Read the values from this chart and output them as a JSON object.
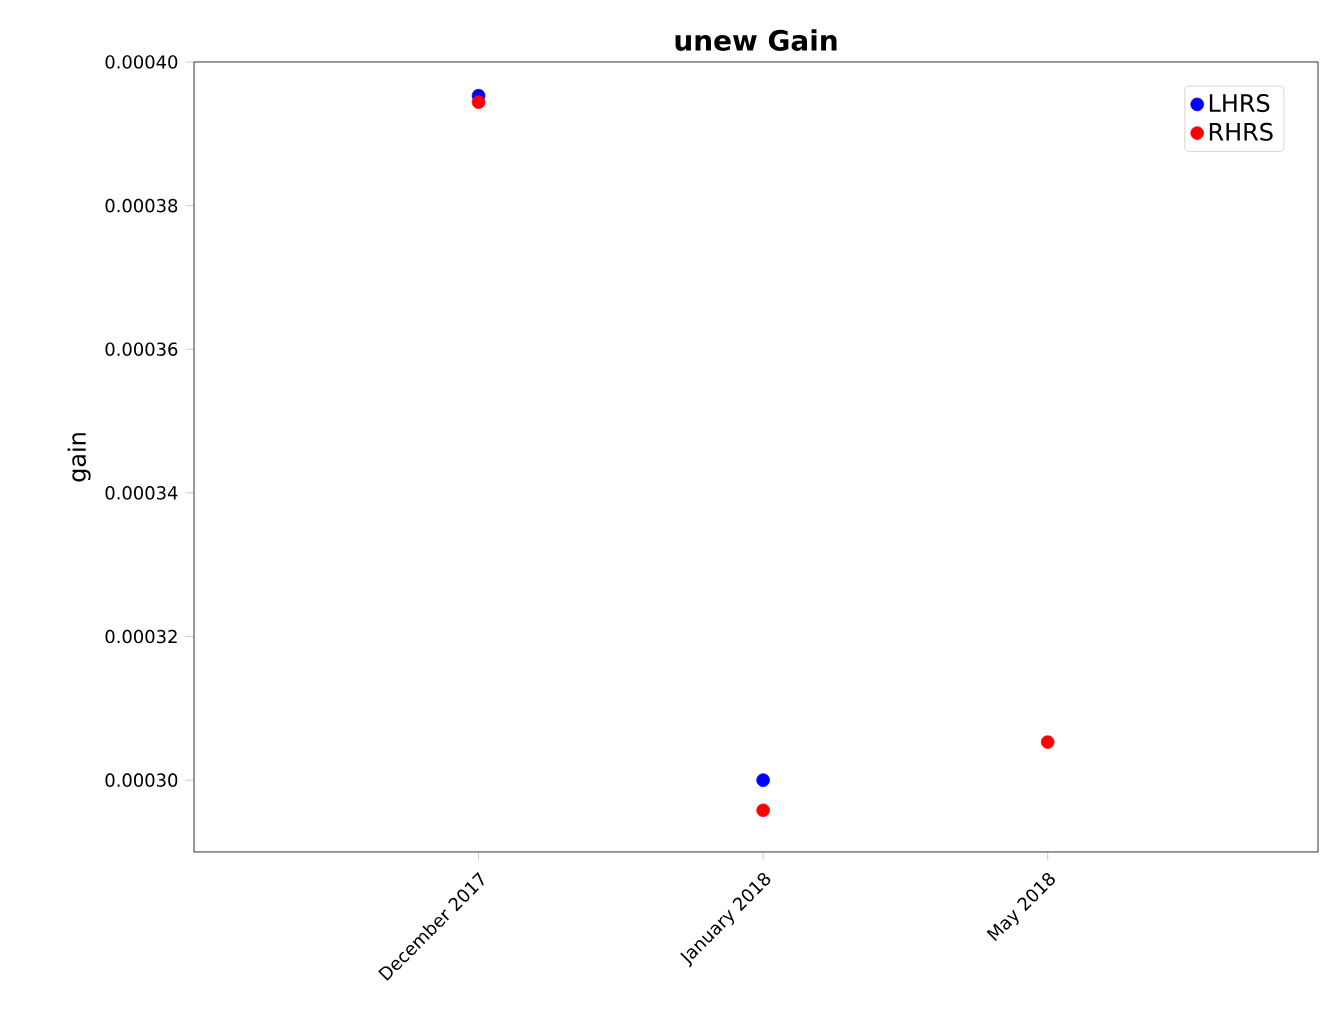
{
  "chart_data": {
    "type": "scatter",
    "title": "unew Gain",
    "ylabel": "gain",
    "categories": [
      "December 2017",
      "January 2018",
      "May 2018"
    ],
    "series": [
      {
        "name": "LHRS",
        "color": "#0000ff",
        "values": [
          0.0003953,
          0.0003,
          null
        ]
      },
      {
        "name": "RHRS",
        "color": "#ff0000",
        "values": [
          0.0003944,
          0.0002958,
          0.0003053
        ]
      }
    ],
    "ylim": [
      0.00029,
      0.0004
    ],
    "yticks": [
      {
        "value": 0.0003,
        "label": "0.00030"
      },
      {
        "value": 0.00032,
        "label": "0.00032"
      },
      {
        "value": 0.00034,
        "label": "0.00034"
      },
      {
        "value": 0.00036,
        "label": "0.00036"
      },
      {
        "value": 0.00038,
        "label": "0.00038"
      },
      {
        "value": 0.0004,
        "label": "0.00040"
      }
    ],
    "marker": "circle",
    "grid": false,
    "legend": "top right"
  }
}
